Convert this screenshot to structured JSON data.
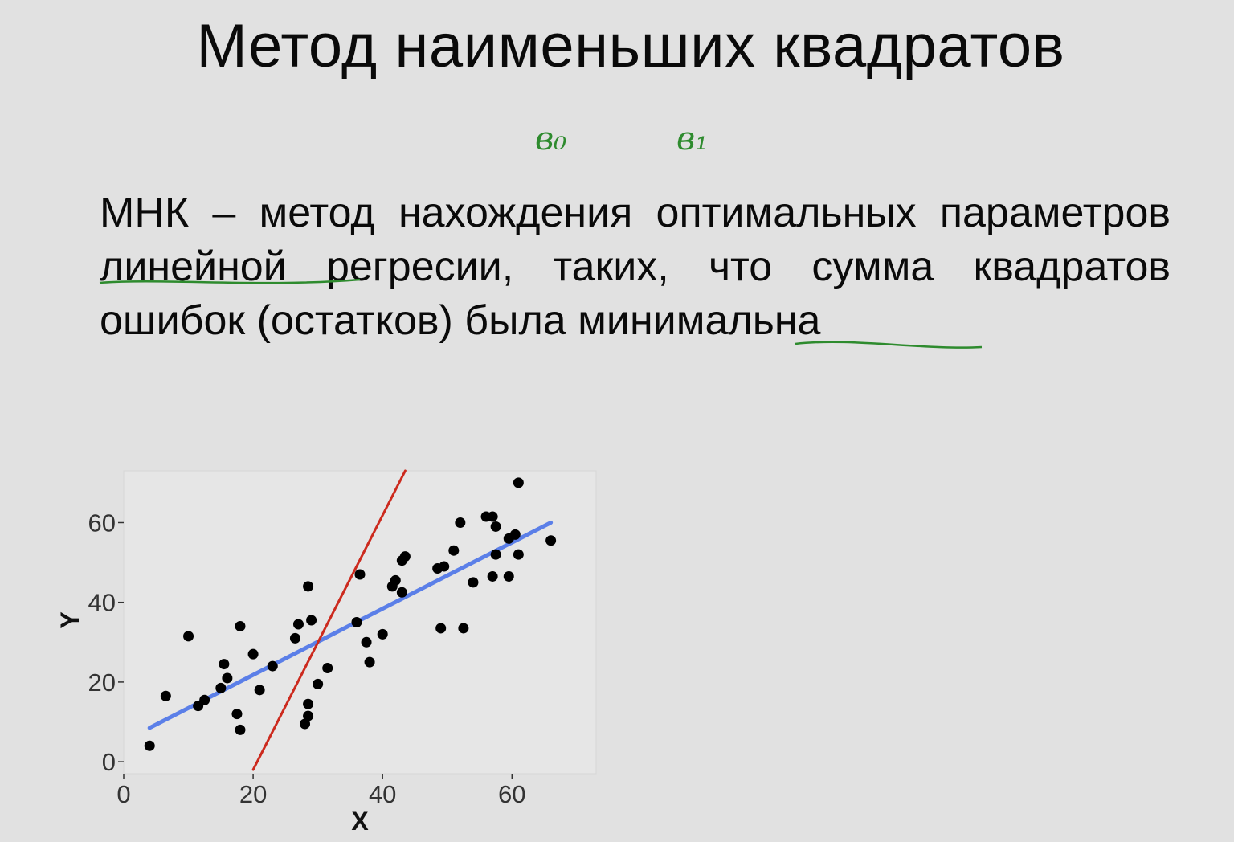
{
  "slide": {
    "title": "Метод наименьших квадратов",
    "handwritten_notes": [
      "в₀",
      "в₁"
    ],
    "definition": "МНК – метод нахождения оптимальных параметров линейной регресии, таких, что сумма квадратов ошибок (остатков) была минимальна"
  },
  "colors": {
    "background": "#e1e1e1",
    "plot_panel": "#e6e6e6",
    "points": "#000000",
    "fit_line": "#5b7fe8",
    "red_line": "#cc2a1e",
    "handwriting": "#2e8b2e"
  },
  "chart_data": {
    "type": "scatter",
    "title": "",
    "xlabel": "X",
    "ylabel": "Y",
    "xlim": [
      0,
      73
    ],
    "ylim": [
      -3,
      73
    ],
    "xticks": [
      0,
      20,
      40,
      60
    ],
    "yticks": [
      0,
      20,
      40,
      60
    ],
    "grid": false,
    "points": [
      [
        4,
        4
      ],
      [
        6.5,
        16.5
      ],
      [
        10,
        31.5
      ],
      [
        11.5,
        14
      ],
      [
        12.5,
        15.5
      ],
      [
        15,
        18.5
      ],
      [
        15.5,
        24.5
      ],
      [
        16,
        21
      ],
      [
        17.5,
        12
      ],
      [
        18,
        8
      ],
      [
        18,
        34
      ],
      [
        20,
        27
      ],
      [
        21,
        18
      ],
      [
        23,
        24
      ],
      [
        26.5,
        31
      ],
      [
        27,
        34.5
      ],
      [
        28,
        9.5
      ],
      [
        28.5,
        11.5
      ],
      [
        28.5,
        14.5
      ],
      [
        28.5,
        44
      ],
      [
        29,
        35.5
      ],
      [
        30,
        19.5
      ],
      [
        31.5,
        23.5
      ],
      [
        36,
        35
      ],
      [
        36.5,
        47
      ],
      [
        37.5,
        30
      ],
      [
        38,
        25
      ],
      [
        40,
        32
      ],
      [
        41.5,
        44
      ],
      [
        42,
        45.5
      ],
      [
        43,
        42.5
      ],
      [
        43,
        50.5
      ],
      [
        43.5,
        51.5
      ],
      [
        48.5,
        48.5
      ],
      [
        49,
        33.5
      ],
      [
        49.5,
        49
      ],
      [
        51,
        53
      ],
      [
        52,
        60
      ],
      [
        52.5,
        33.5
      ],
      [
        54,
        45
      ],
      [
        56,
        61.5
      ],
      [
        57,
        61.5
      ],
      [
        57,
        46.5
      ],
      [
        57.5,
        52
      ],
      [
        57.5,
        59
      ],
      [
        59.5,
        46.5
      ],
      [
        59.5,
        56
      ],
      [
        60.5,
        57
      ],
      [
        61,
        52
      ],
      [
        61,
        70
      ],
      [
        66,
        55.5
      ]
    ],
    "lines": [
      {
        "role": "least-squares fit",
        "color": "#5b7fe8",
        "x": [
          4,
          66
        ],
        "y": [
          8.5,
          60
        ]
      },
      {
        "role": "arbitrary line",
        "color": "#cc2a1e",
        "x": [
          20,
          43.5
        ],
        "y": [
          -2,
          73
        ]
      }
    ]
  }
}
